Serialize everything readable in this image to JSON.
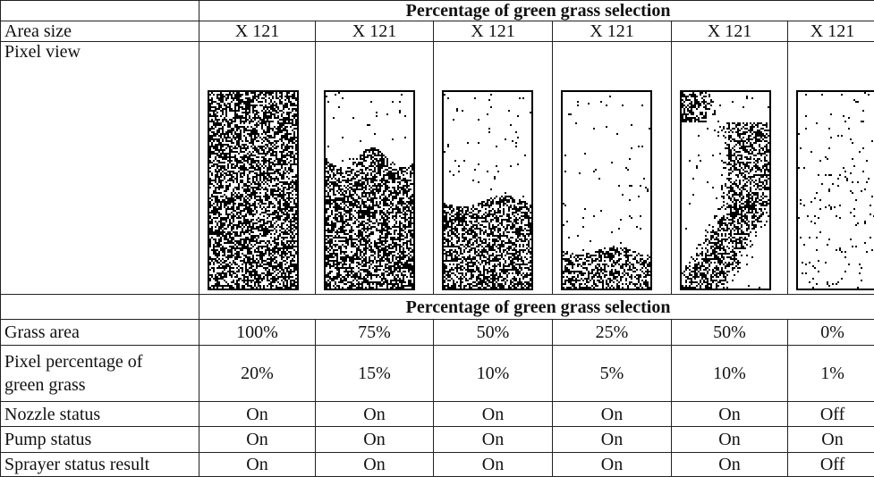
{
  "table": {
    "header_top": "Percentage of green grass selection",
    "area_size": {
      "label": "Area size",
      "values": [
        "X 121",
        "X 121",
        "X 121",
        "X 121",
        "X 121",
        "X 121"
      ]
    },
    "pixel_view": {
      "label": "Pixel view"
    },
    "header_middle": "Percentage of green grass selection",
    "rows": [
      {
        "label": "Grass area",
        "values": [
          "100%",
          "75%",
          "50%",
          "25%",
          "50%",
          "0%"
        ]
      },
      {
        "label": "Pixel percentage of green grass",
        "values": [
          "20%",
          "15%",
          "10%",
          "5%",
          "10%",
          "1%"
        ]
      },
      {
        "label": "Nozzle status",
        "values": [
          "On",
          "On",
          "On",
          "On",
          "On",
          "Off"
        ]
      },
      {
        "label": "Pump status",
        "values": [
          "On",
          "On",
          "On",
          "On",
          "On",
          "On"
        ]
      },
      {
        "label": "Sprayer status result",
        "values": [
          "On",
          "On",
          "On",
          "On",
          "On",
          "Off"
        ]
      }
    ]
  }
}
